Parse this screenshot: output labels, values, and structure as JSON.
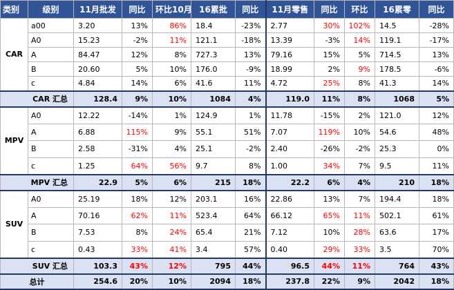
{
  "headers": [
    "类别",
    "级别",
    "11月批发",
    "同比",
    "环比10月",
    "16累批",
    "同比",
    "11月零售",
    "同比",
    "环比",
    "16累零",
    "同比"
  ],
  "groups": [
    {
      "name": "CAR",
      "rows": [
        {
          "level": "a00",
          "cells": [
            "3.20",
            "13%",
            "86%",
            "18.4",
            "-23%",
            "2.77",
            "30%",
            "102%",
            "14.5",
            "-28%"
          ],
          "red": [
            2,
            6,
            7
          ]
        },
        {
          "level": "A0",
          "cells": [
            "15.23",
            "-2%",
            "11%",
            "121.1",
            "-18%",
            "13.39",
            "-3%",
            "14%",
            "119.1",
            "-17%"
          ],
          "red": [
            2,
            7
          ]
        },
        {
          "level": "A",
          "cells": [
            "84.47",
            "12%",
            "8%",
            "727.3",
            "13%",
            "79.16",
            "15%",
            "5%",
            "714.5",
            "13%"
          ],
          "red": []
        },
        {
          "level": "B",
          "cells": [
            "20.60",
            "5%",
            "10%",
            "176.0",
            "-9%",
            "18.99",
            "2%",
            "9%",
            "178.5",
            "-6%"
          ],
          "red": [
            7
          ]
        },
        {
          "level": "c",
          "cells": [
            "4.84",
            "14%",
            "6%",
            "41.6",
            "11%",
            "4.72",
            "25%",
            "8%",
            "41.3",
            "14%"
          ],
          "red": [
            6
          ]
        }
      ],
      "subtotal_label": "CAR 汇总",
      "subtotal": {
        "cells": [
          "128.4",
          "9%",
          "10%",
          "1084",
          "4%",
          "119.0",
          "11%",
          "8%",
          "1068",
          "5%"
        ],
        "red": []
      }
    },
    {
      "name": "MPV",
      "rows": [
        {
          "level": "A0",
          "cells": [
            "12.22",
            "-14%",
            "1%",
            "124.9",
            "1%",
            "11.78",
            "-15%",
            "2%",
            "121.0",
            "12%"
          ],
          "red": []
        },
        {
          "level": "A",
          "cells": [
            "6.88",
            "115%",
            "9%",
            "55.1",
            "51%",
            "7.07",
            "119%",
            "10%",
            "54.6",
            "48%"
          ],
          "red": [
            1,
            6
          ]
        },
        {
          "level": "B",
          "cells": [
            "2.58",
            "-31%",
            "4%",
            "25.1",
            "-2%",
            "2.40",
            "-26%",
            "-2%",
            "25.3",
            "0%"
          ],
          "red": []
        },
        {
          "level": "c",
          "cells": [
            "1.25",
            "64%",
            "56%",
            "9.7",
            "8%",
            "1.00",
            "34%",
            "7%",
            "9.5",
            "11%"
          ],
          "red": [
            1,
            2,
            6
          ]
        }
      ],
      "subtotal_label": "MPV 汇总",
      "subtotal": {
        "cells": [
          "22.9",
          "5%",
          "6%",
          "215",
          "18%",
          "22.2",
          "6%",
          "4%",
          "210",
          "18%"
        ],
        "red": []
      }
    },
    {
      "name": "SUV",
      "rows": [
        {
          "level": "A0",
          "cells": [
            "25.19",
            "18%",
            "12%",
            "203.1",
            "16%",
            "22.86",
            "13%",
            "7%",
            "194.4",
            "18%"
          ],
          "red": []
        },
        {
          "level": "A",
          "cells": [
            "70.16",
            "62%",
            "11%",
            "523.4",
            "64%",
            "66.12",
            "65%",
            "11%",
            "502.1",
            "61%"
          ],
          "red": [
            1,
            2,
            6,
            7
          ]
        },
        {
          "level": "B",
          "cells": [
            "7.53",
            "8%",
            "24%",
            "65.4",
            "21%",
            "7.12",
            "10%",
            "28%",
            "63.6",
            "17%"
          ],
          "red": [
            2,
            7
          ]
        },
        {
          "level": "c",
          "cells": [
            "0.43",
            "33%",
            "41%",
            "3.4",
            "57%",
            "0.40",
            "29%",
            "33%",
            "3.5",
            "70%"
          ],
          "red": [
            1,
            2,
            6,
            7
          ]
        }
      ],
      "subtotal_label": "SUV 汇总",
      "subtotal": {
        "cells": [
          "103.3",
          "43%",
          "12%",
          "795",
          "44%",
          "96.5",
          "44%",
          "11%",
          "764",
          "43%"
        ],
        "red": [
          1,
          2,
          6,
          7
        ]
      }
    }
  ],
  "total_label": "总计",
  "total": {
    "cells": [
      "254.6",
      "20%",
      "10%",
      "2094",
      "18%",
      "237.8",
      "22%",
      "9%",
      "2042",
      "18%"
    ],
    "red": []
  },
  "colors": {
    "header_bg": "#305496",
    "subtotal_bg": "#d9e1f2",
    "highlight": "#ff0000"
  }
}
